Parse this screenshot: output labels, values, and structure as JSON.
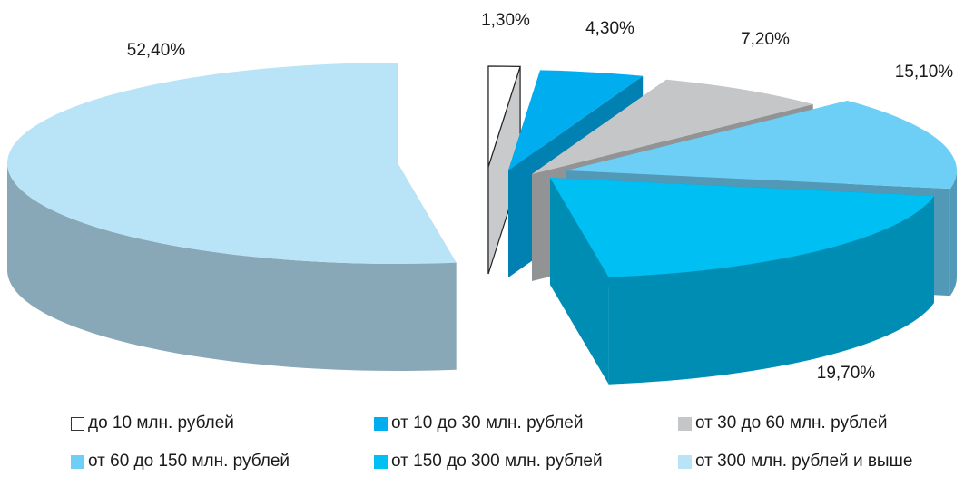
{
  "chart_data": {
    "type": "pie",
    "style": "3d-exploded",
    "title": "",
    "unit": "%",
    "categories": [
      "до 10 млн. рублей",
      "от 10 до 30 млн. рублей",
      "от 30 до 60 млн. рублей",
      "от 60 до 150 млн. рублей",
      "от 150 до 300 млн. рублей",
      "от 300 млн. рублей и выше"
    ],
    "values": [
      1.3,
      4.3,
      7.2,
      15.1,
      19.7,
      52.4
    ],
    "data_labels": [
      "1,30%",
      "4,30%",
      "7,20%",
      "15,10%",
      "19,70%",
      "52,40%"
    ],
    "colors": [
      "#ffffff",
      "#00aeef",
      "#c4c6c8",
      "#6dcff6",
      "#00bff3",
      "#b9e3f7"
    ],
    "legend_position": "bottom",
    "legend_columns": 3
  }
}
